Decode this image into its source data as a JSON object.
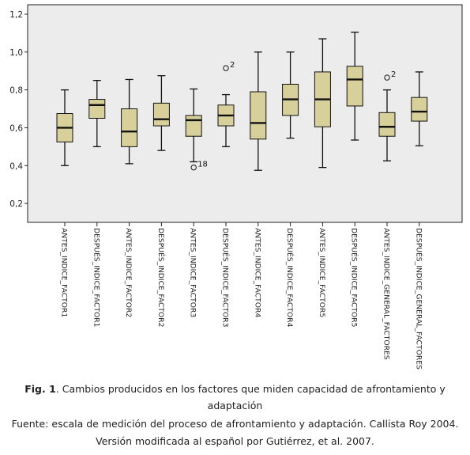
{
  "chart_data": {
    "type": "boxplot",
    "ylim": [
      0.1,
      1.25
    ],
    "yticks": [
      0.2,
      0.4,
      0.6,
      0.8,
      1.0,
      1.2
    ],
    "ytick_labels": [
      "0,2",
      "0,4",
      "0,6",
      "0,8",
      "1,0",
      "1,2"
    ],
    "grid": false,
    "plot_background": "#ececec",
    "box_color": "#d7d09a",
    "categories": [
      "ANTES_INDICE_FACTOR1",
      "DESPUÉS_INDICE_FACTOR1",
      "ANTES_INDICE_FACTOR2",
      "DESPUÉS_INDICE_FACTOR2",
      "ANTES_INDICE_FACTOR3",
      "DESPUÉS_INDICE_FACTOR3",
      "ANTES_INDICE_FACTOR4",
      "DESPUÉS_INDICE_FACTOR4",
      "ANTES_INDICE_FACTOR5",
      "DESPUÉS_INDICE_FACTOR5",
      "ANTES_INDICE_GENERAL_FACTORES",
      "DESPUÉS_INDICE_GENERAL_FACTORES"
    ],
    "boxes": [
      {
        "min": 0.4,
        "q1": 0.525,
        "median": 0.6,
        "q3": 0.675,
        "max": 0.8,
        "outliers": []
      },
      {
        "min": 0.5,
        "q1": 0.65,
        "median": 0.72,
        "q3": 0.75,
        "max": 0.85,
        "outliers": []
      },
      {
        "min": 0.41,
        "q1": 0.5,
        "median": 0.58,
        "q3": 0.7,
        "max": 0.855,
        "outliers": []
      },
      {
        "min": 0.48,
        "q1": 0.61,
        "median": 0.645,
        "q3": 0.73,
        "max": 0.875,
        "outliers": []
      },
      {
        "min": 0.42,
        "q1": 0.555,
        "median": 0.64,
        "q3": 0.665,
        "max": 0.805,
        "outliers": [
          {
            "value": 0.39,
            "label": "18"
          }
        ]
      },
      {
        "min": 0.5,
        "q1": 0.61,
        "median": 0.665,
        "q3": 0.72,
        "max": 0.775,
        "outliers": [
          {
            "value": 0.915,
            "label": "2"
          }
        ]
      },
      {
        "min": 0.375,
        "q1": 0.54,
        "median": 0.625,
        "q3": 0.79,
        "max": 1.0,
        "outliers": []
      },
      {
        "min": 0.545,
        "q1": 0.665,
        "median": 0.75,
        "q3": 0.83,
        "max": 1.0,
        "outliers": []
      },
      {
        "min": 0.39,
        "q1": 0.605,
        "median": 0.75,
        "q3": 0.895,
        "max": 1.07,
        "outliers": []
      },
      {
        "min": 0.535,
        "q1": 0.715,
        "median": 0.855,
        "q3": 0.925,
        "max": 1.105,
        "outliers": []
      },
      {
        "min": 0.425,
        "q1": 0.555,
        "median": 0.605,
        "q3": 0.68,
        "max": 0.8,
        "outliers": [
          {
            "value": 0.865,
            "label": "2"
          }
        ]
      },
      {
        "min": 0.505,
        "q1": 0.635,
        "median": 0.685,
        "q3": 0.76,
        "max": 0.895,
        "outliers": []
      }
    ]
  },
  "caption": {
    "fig_label": "Fig. 1",
    "line1": ". Cambios producidos en los factores que miden capacidad  de afrontamiento  y",
    "line2": "adaptación",
    "line3": "Fuente: escala de medición del proceso de afrontamiento y adaptación. Callista Roy 2004.",
    "line4": "Versión modificada al español por Gutiérrez, et al. 2007."
  }
}
